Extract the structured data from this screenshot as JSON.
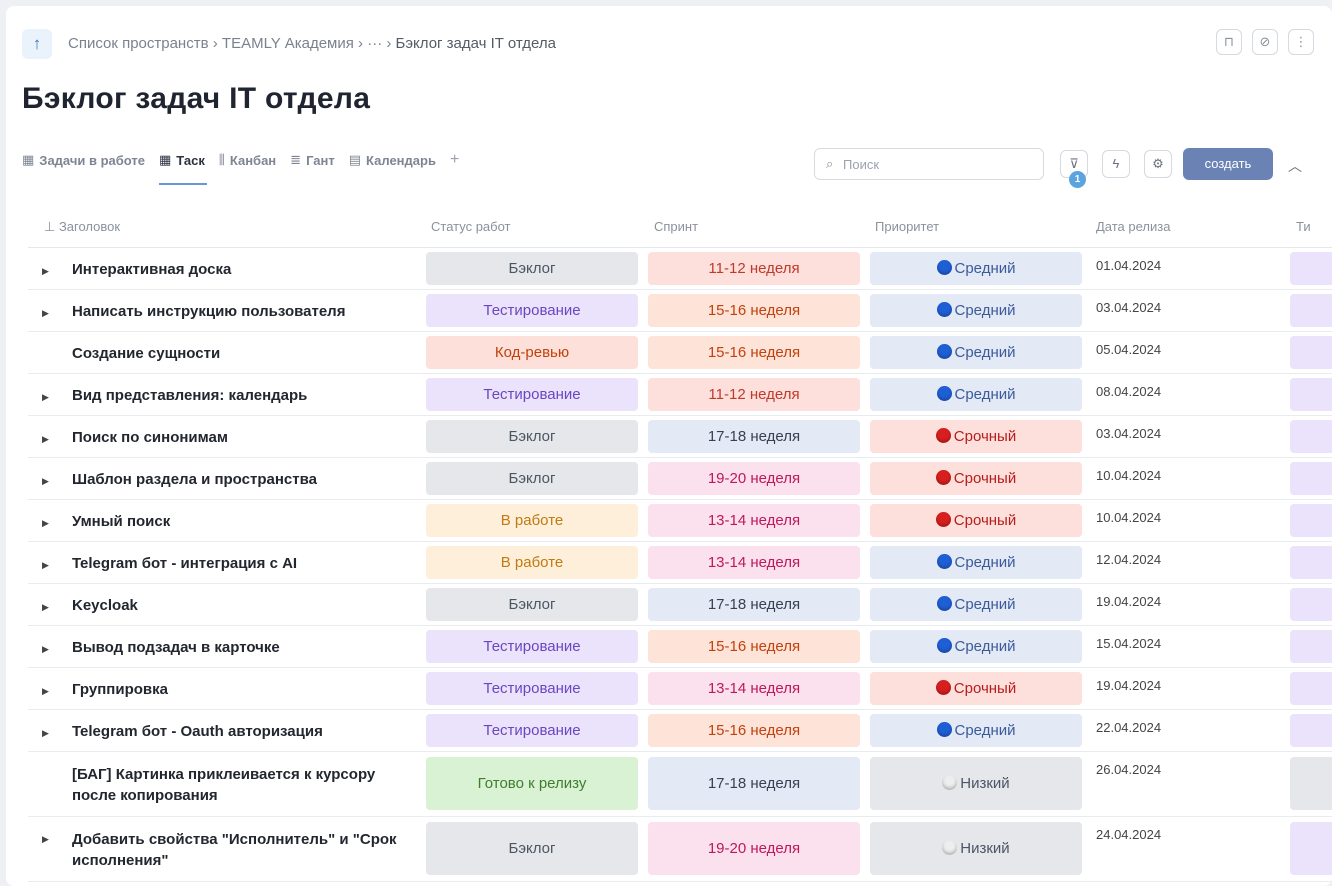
{
  "breadcrumb": {
    "items": [
      "Список пространств",
      "TEAMLY Академия",
      "···"
    ],
    "current": "Бэклог задач IT отдела",
    "separator": "›"
  },
  "page_title": "Бэклог задач IT отдела",
  "tabs": [
    {
      "label": "Задачи в работе",
      "icon": "table-icon",
      "glyph": "▦"
    },
    {
      "label": "Таск",
      "icon": "table-icon",
      "glyph": "▦",
      "active": true
    },
    {
      "label": "Канбан",
      "icon": "kanban-icon",
      "glyph": "⫼"
    },
    {
      "label": "Гант",
      "icon": "gantt-icon",
      "glyph": "≣"
    },
    {
      "label": "Календарь",
      "icon": "calendar-icon",
      "glyph": "▤"
    }
  ],
  "toolbar": {
    "search_placeholder": "Поиск",
    "filter_count": "1",
    "create_label": "создать"
  },
  "columns": [
    "Заголовок",
    "Статус работ",
    "Спринт",
    "Приоритет",
    "Дата релиза",
    "Ти"
  ],
  "rows": [
    {
      "title": "Интерактивная доска",
      "expandable": true,
      "status": "Бэклог",
      "sprint": "11-12 неделя",
      "priority": "Средний",
      "date": "01.04.2024"
    },
    {
      "title": "Написать инструкцию пользователя",
      "expandable": true,
      "status": "Тестирование",
      "sprint": "15-16 неделя",
      "priority": "Средний",
      "date": "03.04.2024"
    },
    {
      "title": "Создание сущности",
      "expandable": false,
      "status": "Код-ревью",
      "sprint": "15-16 неделя",
      "priority": "Средний",
      "date": "05.04.2024"
    },
    {
      "title": "Вид представления: календарь",
      "expandable": true,
      "status": "Тестирование",
      "sprint": "11-12 неделя",
      "priority": "Средний",
      "date": "08.04.2024"
    },
    {
      "title": "Поиск по синонимам",
      "expandable": true,
      "status": "Бэклог",
      "sprint": "17-18 неделя",
      "priority": "Срочный",
      "date": "03.04.2024"
    },
    {
      "title": "Шаблон раздела и пространства",
      "expandable": true,
      "status": "Бэклог",
      "sprint": "19-20 неделя",
      "priority": "Срочный",
      "date": "10.04.2024"
    },
    {
      "title": "Умный поиск",
      "expandable": true,
      "status": "В работе",
      "sprint": "13-14 неделя",
      "priority": "Срочный",
      "date": "10.04.2024"
    },
    {
      "title": "Telegram бот - интеграция с AI",
      "expandable": true,
      "status": "В работе",
      "sprint": "13-14 неделя",
      "priority": "Средний",
      "date": "12.04.2024"
    },
    {
      "title": "Keycloak",
      "expandable": true,
      "status": "Бэклог",
      "sprint": "17-18 неделя",
      "priority": "Средний",
      "date": "19.04.2024"
    },
    {
      "title": "Вывод подзадач в карточке",
      "expandable": true,
      "status": "Тестирование",
      "sprint": "15-16 неделя",
      "priority": "Средний",
      "date": "15.04.2024"
    },
    {
      "title": "Группировка",
      "expandable": true,
      "status": "Тестирование",
      "sprint": "13-14 неделя",
      "priority": "Срочный",
      "date": "19.04.2024"
    },
    {
      "title": "Telegram бот - Oauth авторизация",
      "expandable": true,
      "status": "Тестирование",
      "sprint": "15-16 неделя",
      "priority": "Средний",
      "date": "22.04.2024"
    },
    {
      "title": "[БАГ] Картинка приклеивается к курсору после копирования",
      "expandable": false,
      "status": "Готово к релизу",
      "sprint": "17-18 неделя",
      "priority": "Низкий",
      "date": "26.04.2024"
    },
    {
      "title": "Добавить свойства \"Исполнитель\" и \"Срок исполнения\"",
      "expandable": true,
      "status": "Бэклог",
      "sprint": "19-20 неделя",
      "priority": "Низкий",
      "date": "24.04.2024"
    }
  ],
  "colors": {
    "status": {
      "Бэклог": {
        "bg": "#e5e7eb",
        "fg": "#4b5563"
      },
      "Тестирование": {
        "bg": "#ebe2fb",
        "fg": "#6b46c1"
      },
      "Код-ревью": {
        "bg": "#fde0d9",
        "fg": "#c2410c"
      },
      "В работе": {
        "bg": "#fdefd9",
        "fg": "#c27a12"
      },
      "Готово к релизу": {
        "bg": "#d9f2d3",
        "fg": "#3f7d2e"
      }
    },
    "sprint": {
      "11-12 неделя": {
        "bg": "#fde0dc",
        "fg": "#c0392b"
      },
      "15-16 неделя": {
        "bg": "#fde3d8",
        "fg": "#c2410c"
      },
      "17-18 неделя": {
        "bg": "#e3e9f5",
        "fg": "#374151"
      },
      "19-20 неделя": {
        "bg": "#fbe0ee",
        "fg": "#be185d"
      },
      "13-14 неделя": {
        "bg": "#fbe0ee",
        "fg": "#be185d"
      }
    },
    "priority": {
      "Средний": {
        "bg": "#e3e9f5",
        "fg": "#3b5b9a",
        "dot": "#1f5fd6"
      },
      "Срочный": {
        "bg": "#fde0dc",
        "fg": "#b91c1c",
        "dot": "#d81f1f"
      },
      "Низкий": {
        "bg": "#e5e7eb",
        "fg": "#4b5563",
        "dot": "#eeeeee"
      }
    },
    "type": {
      "default": "#ebe2fb",
      "neutral": "#e5e7eb"
    }
  }
}
